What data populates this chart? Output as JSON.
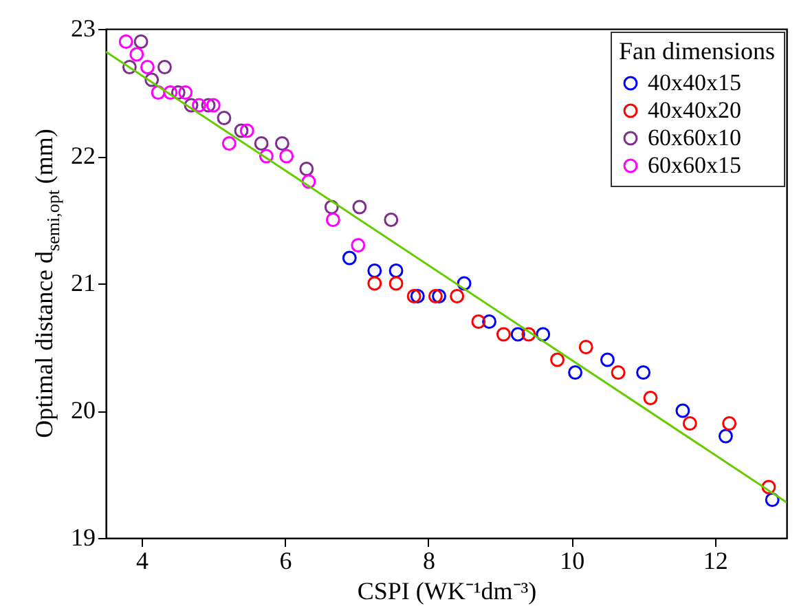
{
  "chart_data": {
    "type": "scatter",
    "xlabel": "CSPI (WK⁻¹dm⁻³)",
    "ylabel": "Optimal distance d$_{semi,opt}$ (mm)",
    "legend_title": "Fan dimensions",
    "legend": "top right",
    "grid": false,
    "marker": "circle",
    "xlim": [
      3.5,
      13
    ],
    "ylim": [
      19,
      23
    ],
    "xticks": [
      4,
      6,
      8,
      10,
      12
    ],
    "yticks": [
      19,
      20,
      21,
      22,
      23
    ],
    "series": [
      {
        "name": "40x40x15",
        "color": "#0000ff",
        "x": [
          6.9,
          7.25,
          7.55,
          7.85,
          8.15,
          8.5,
          8.85,
          9.25,
          9.6,
          10.05,
          10.5,
          11.0,
          11.55,
          12.15,
          12.8
        ],
        "values": [
          21.2,
          21.1,
          21.1,
          20.9,
          20.9,
          21.0,
          20.7,
          20.6,
          20.6,
          20.3,
          20.4,
          20.3,
          20.0,
          19.8,
          19.3
        ]
      },
      {
        "name": "40x40x20",
        "color": "#ff0000",
        "x": [
          7.25,
          7.55,
          7.8,
          8.1,
          8.4,
          8.7,
          9.05,
          9.4,
          9.8,
          10.2,
          10.65,
          11.1,
          11.65,
          12.2,
          12.75
        ],
        "values": [
          21.0,
          21.0,
          20.9,
          20.9,
          20.9,
          20.7,
          20.6,
          20.6,
          20.4,
          20.5,
          20.3,
          20.1,
          19.9,
          19.9,
          19.4
        ]
      },
      {
        "name": "60x60x10",
        "color": "#7e2f8e",
        "x": [
          3.83,
          3.99,
          4.14,
          4.32,
          4.51,
          4.69,
          4.93,
          5.15,
          5.39,
          5.67,
          5.96,
          6.3,
          6.65,
          7.04,
          7.48
        ],
        "values": [
          22.7,
          22.9,
          22.6,
          22.7,
          22.5,
          22.4,
          22.4,
          22.3,
          22.2,
          22.1,
          22.1,
          21.9,
          21.6,
          21.6,
          21.5
        ]
      },
      {
        "name": "60x60x15",
        "color": "#ff00ff",
        "x": [
          3.78,
          3.93,
          4.08,
          4.23,
          4.4,
          4.61,
          4.8,
          5.0,
          5.22,
          5.47,
          5.74,
          6.02,
          6.33,
          6.67,
          7.02
        ],
        "values": [
          22.9,
          22.8,
          22.7,
          22.5,
          22.5,
          22.5,
          22.4,
          22.4,
          22.1,
          22.2,
          22.0,
          22.0,
          21.8,
          21.5,
          21.3
        ]
      },
      {
        "type": "line",
        "marker": "none",
        "color": "#66cc00",
        "x": [
          3.5,
          13
        ],
        "values": [
          22.82,
          19.28
        ]
      }
    ]
  }
}
